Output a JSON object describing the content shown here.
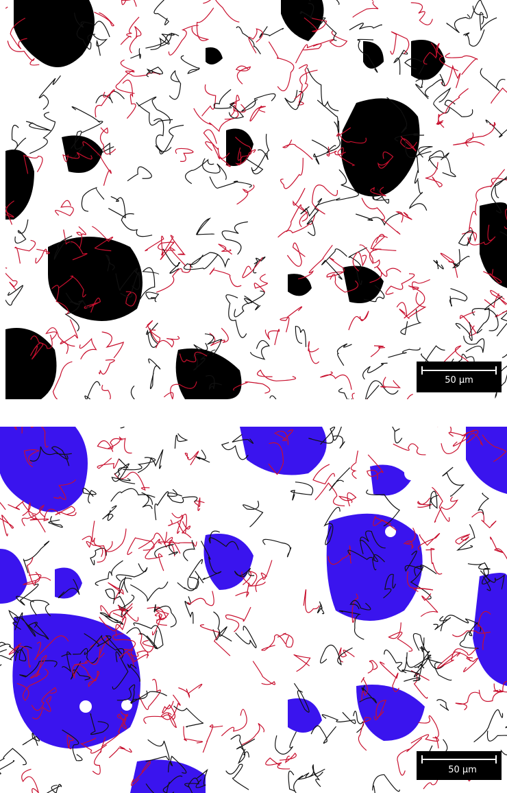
{
  "panels": [
    {
      "scale_bar": "50 µm"
    },
    {
      "scale_bar": "50 µm"
    }
  ]
}
